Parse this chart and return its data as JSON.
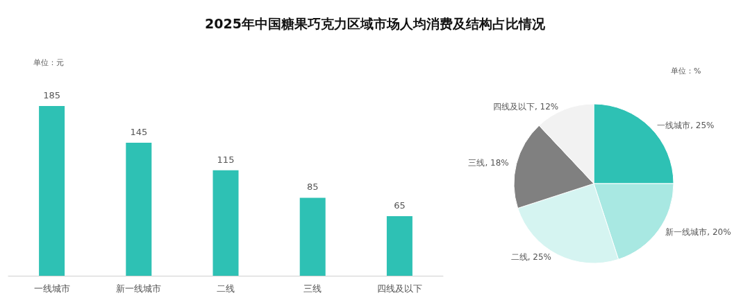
{
  "chart_data": [
    {
      "type": "bar",
      "title": "2025年中国糖果巧克力区域市场人均消费及结构占比情况",
      "annotations": [
        "单位：元"
      ],
      "categories": [
        "一线城市",
        "新一线城市",
        "二线",
        "三线",
        "四线及以下"
      ],
      "values": [
        185,
        145,
        115,
        85,
        65
      ],
      "color": "#2ec1b4",
      "data_labels": true,
      "legend": false
    },
    {
      "type": "pie",
      "annotations": [
        "单位：%"
      ],
      "categories": [
        "一线城市",
        "新一线城市",
        "二线",
        "三线",
        "四线及以下"
      ],
      "values": [
        25,
        20,
        25,
        18,
        12
      ],
      "value_labels": [
        "25%",
        "20%",
        "25%",
        "18%",
        "12%"
      ],
      "colors": [
        "#2ec1b4",
        "#a8e8e2",
        "#d5f4f1",
        "#808080",
        "#f2f2f2"
      ],
      "legend": false
    }
  ]
}
